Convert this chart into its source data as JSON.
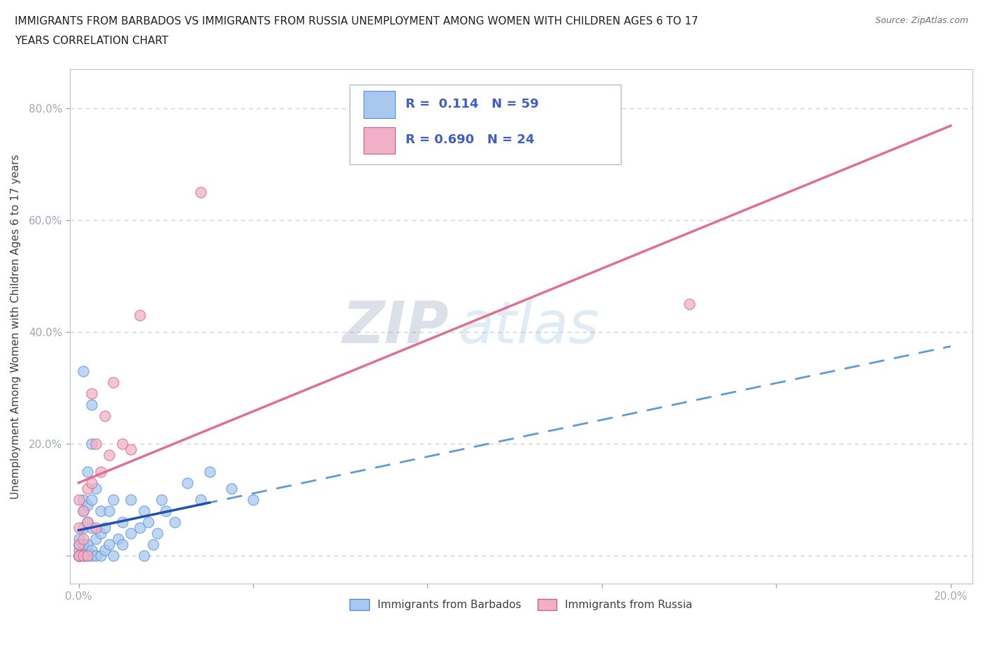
{
  "title_line1": "IMMIGRANTS FROM BARBADOS VS IMMIGRANTS FROM RUSSIA UNEMPLOYMENT AMONG WOMEN WITH CHILDREN AGES 6 TO 17",
  "title_line2": "YEARS CORRELATION CHART",
  "source": "Source: ZipAtlas.com",
  "ylabel": "Unemployment Among Women with Children Ages 6 to 17 years",
  "barbados_R": "0.114",
  "barbados_N": "59",
  "russia_R": "0.690",
  "russia_N": "24",
  "barbados_color": "#a8c8f0",
  "barbados_edge": "#5090d0",
  "russia_color": "#f0b0c8",
  "russia_edge": "#d06080",
  "regression_barbados_color": "#5090d0",
  "regression_russia_color": "#e07090",
  "watermark_zip": "ZIP",
  "watermark_atlas": "atlas",
  "barbados_x": [
    0.0,
    0.0,
    0.0,
    0.0,
    0.0,
    0.0,
    0.0,
    0.0,
    0.001,
    0.001,
    0.001,
    0.001,
    0.001,
    0.001,
    0.001,
    0.002,
    0.002,
    0.002,
    0.002,
    0.002,
    0.003,
    0.003,
    0.003,
    0.003,
    0.004,
    0.004,
    0.004,
    0.005,
    0.005,
    0.005,
    0.006,
    0.006,
    0.007,
    0.007,
    0.008,
    0.008,
    0.009,
    0.01,
    0.01,
    0.012,
    0.012,
    0.014,
    0.015,
    0.015,
    0.016,
    0.017,
    0.018,
    0.019,
    0.02,
    0.022,
    0.025,
    0.028,
    0.03,
    0.035,
    0.04,
    0.001,
    0.002,
    0.003,
    0.003
  ],
  "barbados_y": [
    0.0,
    0.0,
    0.0,
    0.0,
    0.0,
    0.01,
    0.02,
    0.03,
    0.0,
    0.0,
    0.01,
    0.02,
    0.05,
    0.08,
    0.1,
    0.0,
    0.01,
    0.02,
    0.06,
    0.09,
    0.0,
    0.01,
    0.05,
    0.1,
    0.0,
    0.03,
    0.12,
    0.0,
    0.04,
    0.08,
    0.01,
    0.05,
    0.02,
    0.08,
    0.0,
    0.1,
    0.03,
    0.02,
    0.06,
    0.04,
    0.1,
    0.05,
    0.0,
    0.08,
    0.06,
    0.02,
    0.04,
    0.1,
    0.08,
    0.06,
    0.13,
    0.1,
    0.15,
    0.12,
    0.1,
    0.33,
    0.15,
    0.2,
    0.27
  ],
  "russia_x": [
    0.0,
    0.0,
    0.0,
    0.0,
    0.0,
    0.001,
    0.001,
    0.001,
    0.002,
    0.002,
    0.002,
    0.003,
    0.003,
    0.004,
    0.004,
    0.005,
    0.006,
    0.007,
    0.008,
    0.01,
    0.012,
    0.014,
    0.028,
    0.14
  ],
  "russia_y": [
    0.0,
    0.0,
    0.02,
    0.05,
    0.1,
    0.0,
    0.03,
    0.08,
    0.0,
    0.06,
    0.12,
    0.13,
    0.29,
    0.05,
    0.2,
    0.15,
    0.25,
    0.18,
    0.31,
    0.2,
    0.19,
    0.43,
    0.65,
    0.45
  ],
  "xlim": [
    -0.002,
    0.205
  ],
  "ylim": [
    -0.05,
    0.87
  ],
  "xticks": [
    0.0,
    0.04,
    0.08,
    0.12,
    0.16,
    0.2
  ],
  "yticks": [
    0.0,
    0.2,
    0.4,
    0.6,
    0.8
  ],
  "grid_color": "#c8d4e0",
  "background_color": "#ffffff",
  "tick_color": "#4060a0"
}
